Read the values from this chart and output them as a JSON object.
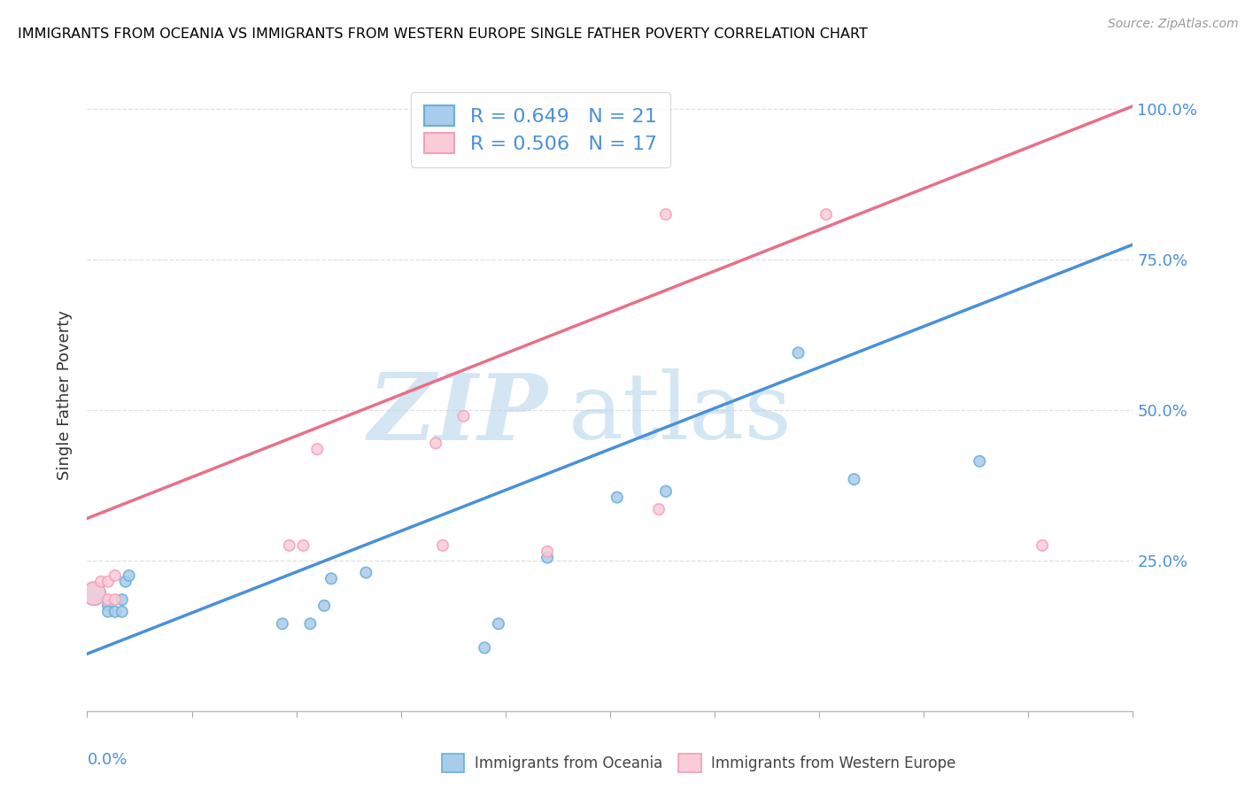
{
  "title": "IMMIGRANTS FROM OCEANIA VS IMMIGRANTS FROM WESTERN EUROPE SINGLE FATHER POVERTY CORRELATION CHART",
  "source": "Source: ZipAtlas.com",
  "ylabel": "Single Father Poverty",
  "legend_label1": "Immigrants from Oceania",
  "legend_label2": "Immigrants from Western Europe",
  "R1": 0.649,
  "N1": 21,
  "R2": 0.506,
  "N2": 17,
  "color_blue_fill": "#a8ccec",
  "color_blue_edge": "#6aaed6",
  "color_pink_fill": "#f9ccd8",
  "color_pink_edge": "#f4a0b8",
  "color_blue_line": "#4a90d9",
  "color_pink_line": "#e8708a",
  "color_blue_text": "#4a90d9",
  "watermark_zip": "#b8d4ee",
  "watermark_atlas": "#9ec8e8",
  "grid_color": "#e0e0e0",
  "background": "#ffffff",
  "blue_x": [
    0.001,
    0.003,
    0.003,
    0.004,
    0.005,
    0.005,
    0.0055,
    0.006,
    0.028,
    0.032,
    0.034,
    0.035,
    0.04,
    0.057,
    0.059,
    0.066,
    0.076,
    0.083,
    0.102,
    0.11,
    0.128
  ],
  "blue_y": [
    0.195,
    0.175,
    0.165,
    0.165,
    0.165,
    0.185,
    0.215,
    0.225,
    0.145,
    0.145,
    0.175,
    0.22,
    0.23,
    0.105,
    0.145,
    0.255,
    0.355,
    0.365,
    0.595,
    0.385,
    0.415
  ],
  "blue_sizes": [
    350,
    80,
    80,
    80,
    80,
    80,
    80,
    80,
    80,
    80,
    80,
    80,
    80,
    80,
    80,
    80,
    80,
    80,
    80,
    80,
    80
  ],
  "pink_x": [
    0.001,
    0.002,
    0.003,
    0.003,
    0.004,
    0.004,
    0.029,
    0.031,
    0.033,
    0.05,
    0.051,
    0.054,
    0.066,
    0.082,
    0.083,
    0.106,
    0.137
  ],
  "pink_y": [
    0.195,
    0.215,
    0.215,
    0.185,
    0.185,
    0.225,
    0.275,
    0.275,
    0.435,
    0.445,
    0.275,
    0.49,
    0.265,
    0.335,
    0.825,
    0.825,
    0.275
  ],
  "pink_sizes": [
    350,
    80,
    80,
    80,
    80,
    80,
    80,
    80,
    80,
    80,
    80,
    80,
    80,
    80,
    80,
    80,
    80
  ],
  "xmin": 0.0,
  "xmax": 0.15,
  "ymin": 0.0,
  "ymax": 1.05,
  "ytick_positions": [
    0.0,
    0.25,
    0.5,
    0.75,
    1.0
  ],
  "ytick_labels_right": [
    "",
    "25.0%",
    "50.0%",
    "75.0%",
    "100.0%"
  ],
  "blue_line_y0": 0.095,
  "blue_line_y1": 0.775,
  "pink_line_y0": 0.32,
  "pink_line_y1": 1.005
}
